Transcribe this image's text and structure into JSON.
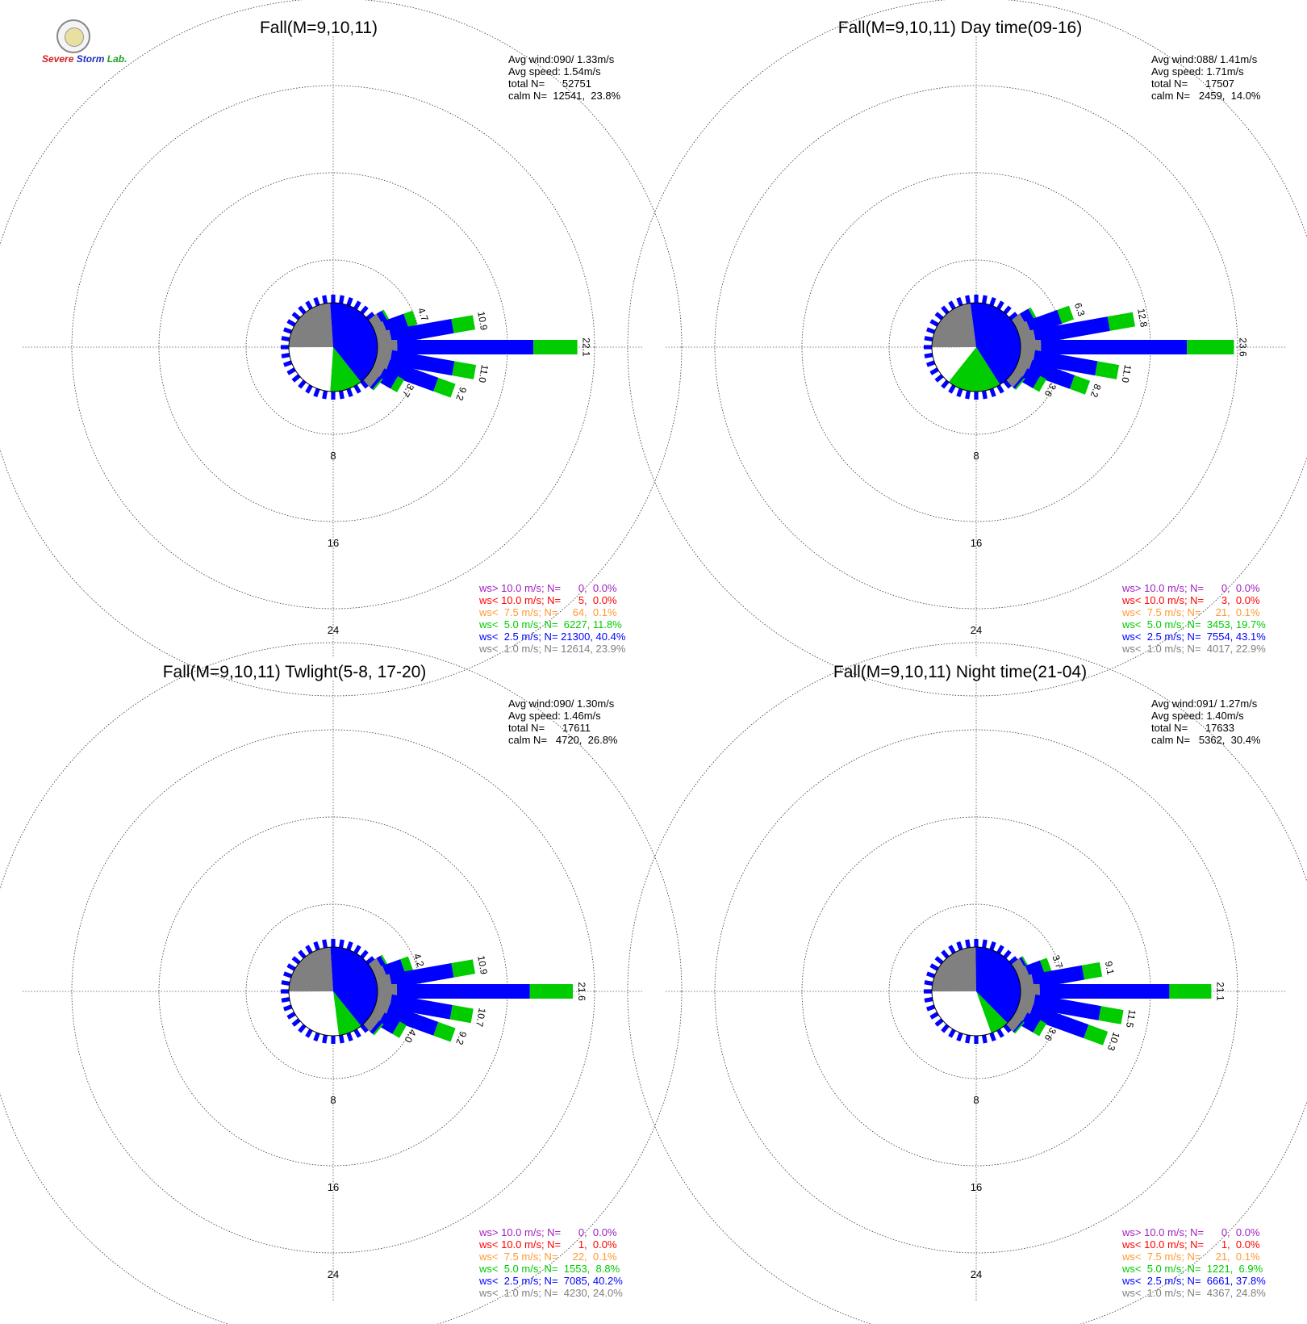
{
  "logo": {
    "text_a": "Severe",
    "text_b": "Storm",
    "text_c": "Lab."
  },
  "colors": {
    "ws_gt_10": "#a020c0",
    "ws_lt_10": "#ff0000",
    "ws_lt_7_5": "#ff9933",
    "ws_lt_5": "#00cc00",
    "ws_lt_2_5": "#0000ff",
    "ws_lt_1": "#808080",
    "grid": "#000000"
  },
  "chart_data": [
    {
      "type": "windrose",
      "title": "Fall(M=9,10,11)",
      "ring_labels": [
        "8",
        "16",
        "24"
      ],
      "stats": [
        "Avg wind:090/ 1.33m/s",
        "Avg speed: 1.54m/s",
        "total N=      52751",
        "calm N=  12541,  23.8%"
      ],
      "legend": [
        {
          "label": "ws> 10.0 m/s; N=      0,  0.0%",
          "color_key": "ws_gt_10"
        },
        {
          "label": "ws< 10.0 m/s; N=      5,  0.0%",
          "color_key": "ws_lt_10"
        },
        {
          "label": "ws<  7.5 m/s; N=     64,  0.1%",
          "color_key": "ws_lt_7_5"
        },
        {
          "label": "ws<  5.0 m/s; N=  6227, 11.8%",
          "color_key": "ws_lt_5"
        },
        {
          "label": "ws<  2.5 m/s; N= 21300, 40.4%",
          "color_key": "ws_lt_2_5"
        },
        {
          "label": "ws<  1.0 m/s; N= 12614, 23.9%",
          "color_key": "ws_lt_1"
        }
      ],
      "pie": [
        {
          "color_key": "ws_lt_1",
          "pct": 23.9
        },
        {
          "color_key": "ws_lt_2_5",
          "pct": 40.4
        },
        {
          "color_key": "ws_lt_5",
          "pct": 11.8
        },
        {
          "color_key": "calm",
          "pct": 23.8
        }
      ],
      "petals": [
        {
          "deg": 60,
          "total": 2.0
        },
        {
          "deg": 70,
          "total": 4.7,
          "label": "4.7"
        },
        {
          "deg": 80,
          "total": 10.9,
          "label": "10.9"
        },
        {
          "deg": 90,
          "total": 22.1,
          "label": "22.1"
        },
        {
          "deg": 100,
          "total": 11.0,
          "label": "11.0"
        },
        {
          "deg": 110,
          "total": 9.2,
          "label": "9.2"
        },
        {
          "deg": 120,
          "total": 3.7,
          "label": "3.7"
        },
        {
          "deg": 130,
          "total": 1.6
        }
      ]
    },
    {
      "type": "windrose",
      "title": "Fall(M=9,10,11) Day time(09-16)",
      "ring_labels": [
        "8",
        "16",
        "24"
      ],
      "stats": [
        "Avg wind:088/ 1.41m/s",
        "Avg speed: 1.71m/s",
        "total N=      17507",
        "calm N=   2459,  14.0%"
      ],
      "legend": [
        {
          "label": "ws> 10.0 m/s; N=      0,  0.0%",
          "color_key": "ws_gt_10"
        },
        {
          "label": "ws< 10.0 m/s; N=      3,  0.0%",
          "color_key": "ws_lt_10"
        },
        {
          "label": "ws<  7.5 m/s; N=     21,  0.1%",
          "color_key": "ws_lt_7_5"
        },
        {
          "label": "ws<  5.0 m/s; N=  3453, 19.7%",
          "color_key": "ws_lt_5"
        },
        {
          "label": "ws<  2.5 m/s; N=  7554, 43.1%",
          "color_key": "ws_lt_2_5"
        },
        {
          "label": "ws<  1.0 m/s; N=  4017, 22.9%",
          "color_key": "ws_lt_1"
        }
      ],
      "pie": [
        {
          "color_key": "ws_lt_1",
          "pct": 22.9
        },
        {
          "color_key": "ws_lt_2_5",
          "pct": 43.1
        },
        {
          "color_key": "ws_lt_5",
          "pct": 19.7
        },
        {
          "color_key": "calm",
          "pct": 14.0
        }
      ],
      "petals": [
        {
          "deg": 60,
          "total": 2.5
        },
        {
          "deg": 70,
          "total": 6.3,
          "label": "6.3"
        },
        {
          "deg": 80,
          "total": 12.8,
          "label": "12.8"
        },
        {
          "deg": 90,
          "total": 23.6,
          "label": "23.6"
        },
        {
          "deg": 100,
          "total": 11.0,
          "label": "11.0"
        },
        {
          "deg": 110,
          "total": 8.2,
          "label": "8.2"
        },
        {
          "deg": 120,
          "total": 3.6,
          "label": "3.6"
        },
        {
          "deg": 130,
          "total": 1.5
        }
      ]
    },
    {
      "type": "windrose",
      "title": "Fall(M=9,10,11) Twlight(5-8, 17-20)",
      "ring_labels": [
        "8",
        "16",
        "24"
      ],
      "stats": [
        "Avg wind:090/ 1.30m/s",
        "Avg speed: 1.46m/s",
        "total N=      17611",
        "calm N=   4720,  26.8%"
      ],
      "legend": [
        {
          "label": "ws> 10.0 m/s; N=      0,  0.0%",
          "color_key": "ws_gt_10"
        },
        {
          "label": "ws< 10.0 m/s; N=      1,  0.0%",
          "color_key": "ws_lt_10"
        },
        {
          "label": "ws<  7.5 m/s; N=     22,  0.1%",
          "color_key": "ws_lt_7_5"
        },
        {
          "label": "ws<  5.0 m/s; N=  1553,  8.8%",
          "color_key": "ws_lt_5"
        },
        {
          "label": "ws<  2.5 m/s; N=  7085, 40.2%",
          "color_key": "ws_lt_2_5"
        },
        {
          "label": "ws<  1.0 m/s; N=  4230, 24.0%",
          "color_key": "ws_lt_1"
        }
      ],
      "pie": [
        {
          "color_key": "ws_lt_1",
          "pct": 24.0
        },
        {
          "color_key": "ws_lt_2_5",
          "pct": 40.2
        },
        {
          "color_key": "ws_lt_5",
          "pct": 8.8
        },
        {
          "color_key": "calm",
          "pct": 26.8
        }
      ],
      "petals": [
        {
          "deg": 60,
          "total": 1.8
        },
        {
          "deg": 70,
          "total": 4.2,
          "label": "4.2"
        },
        {
          "deg": 80,
          "total": 10.9,
          "label": "10.9"
        },
        {
          "deg": 90,
          "total": 21.6,
          "label": "21.6"
        },
        {
          "deg": 100,
          "total": 10.7,
          "label": "10.7"
        },
        {
          "deg": 110,
          "total": 9.2,
          "label": "9.2"
        },
        {
          "deg": 120,
          "total": 4.0,
          "label": "4.0"
        },
        {
          "deg": 130,
          "total": 1.7
        }
      ]
    },
    {
      "type": "windrose",
      "title": "Fall(M=9,10,11) Night time(21-04)",
      "ring_labels": [
        "8",
        "16",
        "24"
      ],
      "stats": [
        "Avg wind:091/ 1.27m/s",
        "Avg speed: 1.40m/s",
        "total N=      17633",
        "calm N=   5362,  30.4%"
      ],
      "legend": [
        {
          "label": "ws> 10.0 m/s; N=      0,  0.0%",
          "color_key": "ws_gt_10"
        },
        {
          "label": "ws< 10.0 m/s; N=      1,  0.0%",
          "color_key": "ws_lt_10"
        },
        {
          "label": "ws<  7.5 m/s; N=     21,  0.1%",
          "color_key": "ws_lt_7_5"
        },
        {
          "label": "ws<  5.0 m/s; N=  1221,  6.9%",
          "color_key": "ws_lt_5"
        },
        {
          "label": "ws<  2.5 m/s; N=  6661, 37.8%",
          "color_key": "ws_lt_2_5"
        },
        {
          "label": "ws<  1.0 m/s; N=  4367, 24.8%",
          "color_key": "ws_lt_1"
        }
      ],
      "pie": [
        {
          "color_key": "ws_lt_1",
          "pct": 24.8
        },
        {
          "color_key": "ws_lt_2_5",
          "pct": 37.8
        },
        {
          "color_key": "ws_lt_5",
          "pct": 6.9
        },
        {
          "color_key": "calm",
          "pct": 30.4
        }
      ],
      "petals": [
        {
          "deg": 60,
          "total": 1.5
        },
        {
          "deg": 70,
          "total": 3.7,
          "label": "3.7"
        },
        {
          "deg": 80,
          "total": 9.1,
          "label": "9.1"
        },
        {
          "deg": 90,
          "total": 21.1,
          "label": "21.1"
        },
        {
          "deg": 100,
          "total": 11.5,
          "label": "11.5"
        },
        {
          "deg": 110,
          "total": 10.3,
          "label": "10.3"
        },
        {
          "deg": 120,
          "total": 3.6,
          "label": "3.6"
        },
        {
          "deg": 130,
          "total": 1.4
        }
      ]
    }
  ]
}
